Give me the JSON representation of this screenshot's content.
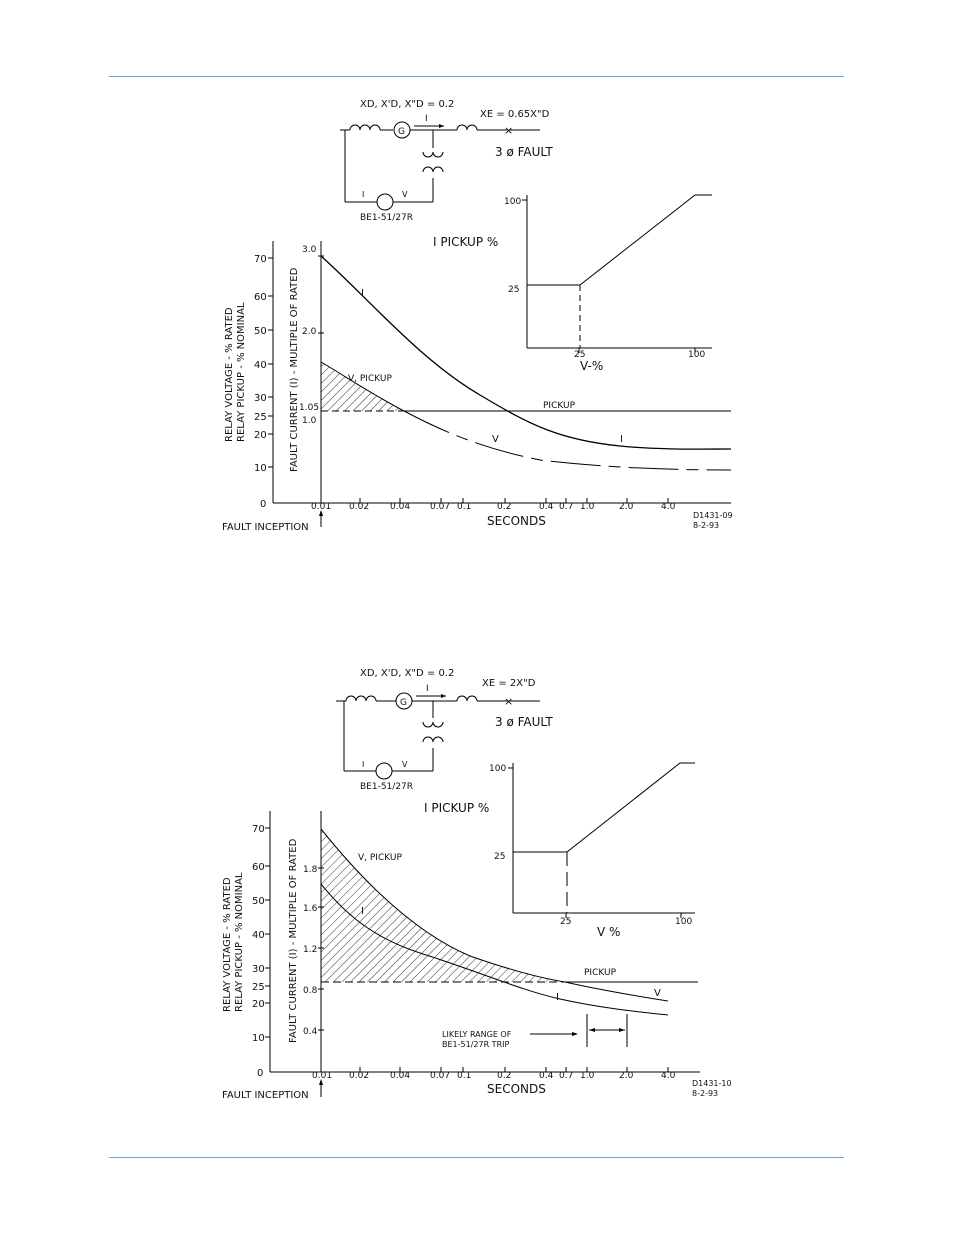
{
  "accent_color": "#6fa3c9",
  "figures": [
    {
      "id": "top",
      "circuit": {
        "reactance_label": "XD, X'D, X\"D = 0.2",
        "external_reactance_label": "XE = 0.65X\"D",
        "current_label": "I",
        "fault_label": "3 ø FAULT",
        "relay_i": "I",
        "relay_v": "V",
        "relay_label": "BE1-51/27R",
        "generator_label": "G"
      },
      "inset": {
        "title": "I PICKUP %",
        "xlabel": "V-%",
        "y_ticks": [
          "25",
          "100"
        ],
        "x_ticks": [
          "25",
          "100"
        ]
      },
      "main": {
        "left_axis_label_1": "RELAY VOLTAGE - % RATED",
        "left_axis_label_2": "RELAY PICKUP - % NOMINAL",
        "left_ticks": [
          "0",
          "10",
          "20",
          "25",
          "30",
          "40",
          "50",
          "60",
          "70"
        ],
        "current_axis_label": "FAULT CURRENT (I) - MULTIPLE OF RATED",
        "current_ticks": [
          "1.0",
          "1.05",
          "2.0",
          "3.0"
        ],
        "x_ticks": [
          "0.01",
          "0.02",
          "0.04",
          "0.07",
          "0.1",
          "0.2",
          "0.4",
          "0.7",
          "1.0",
          "2.0",
          "4.0"
        ],
        "xlabel": "SECONDS",
        "inception_label": "FAULT INCEPTION",
        "curve_labels": {
          "current": "I",
          "current2": "I",
          "voltage": "V",
          "v_pickup": "V, PICKUP",
          "pickup": "PICKUP"
        },
        "drawing_no": "D1431-09",
        "date": "8-2-93"
      }
    },
    {
      "id": "bottom",
      "circuit": {
        "reactance_label": "XD, X'D, X\"D = 0.2",
        "external_reactance_label": "XE = 2X\"D",
        "current_label": "I",
        "fault_label": "3 ø FAULT",
        "relay_i": "I",
        "relay_v": "V",
        "relay_label": "BE1-51/27R",
        "generator_label": "G"
      },
      "inset": {
        "title": "I PICKUP %",
        "xlabel": "V %",
        "y_ticks": [
          "25",
          "100"
        ],
        "x_ticks": [
          "25",
          "100"
        ]
      },
      "main": {
        "left_axis_label_1": "RELAY VOLTAGE - % RATED",
        "left_axis_label_2": "RELAY PICKUP - % NOMINAL",
        "left_ticks": [
          "0",
          "10",
          "20",
          "25",
          "30",
          "40",
          "50",
          "60",
          "70"
        ],
        "current_axis_label": "FAULT CURRENT (I) - MULTIPLE OF RATED",
        "current_ticks": [
          "0.4",
          "0.8",
          "1.2",
          "1.6",
          "1.8"
        ],
        "x_ticks": [
          "0.01",
          "0.02",
          "0.04",
          "0.07",
          "0.1",
          "0.2",
          "0.4",
          "0.7",
          "1.0",
          "2.0",
          "4.0"
        ],
        "xlabel": "SECONDS",
        "inception_label": "FAULT INCEPTION",
        "curve_labels": {
          "current": "I",
          "current2": "I",
          "voltage": "V",
          "v_pickup": "V, PICKUP",
          "pickup": "PICKUP"
        },
        "trip_label_1": "LIKELY RANGE OF",
        "trip_label_2": "BE1-51/27R TRIP",
        "drawing_no": "D1431-10",
        "date": "8-2-93"
      }
    }
  ]
}
